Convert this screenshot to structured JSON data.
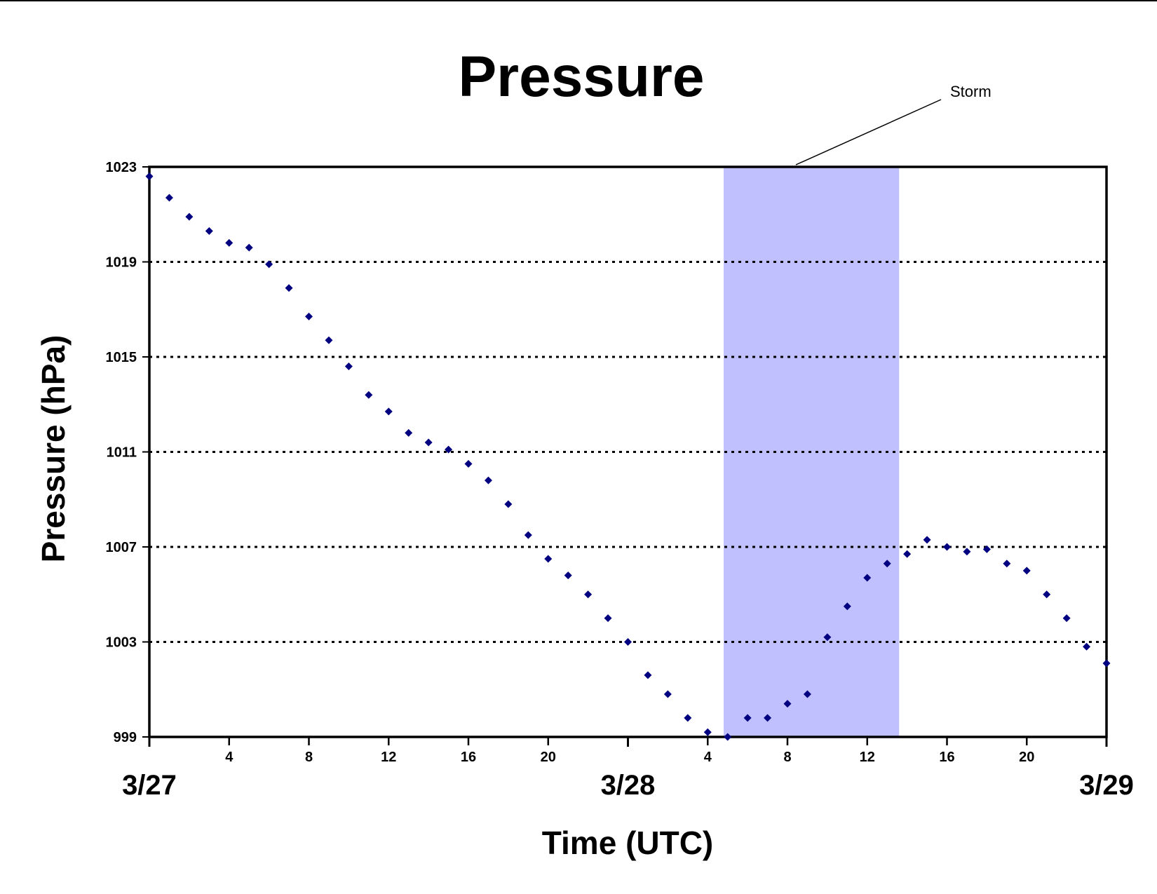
{
  "chart_data": {
    "type": "scatter",
    "title": "Pressure",
    "xlabel": "Time (UTC)",
    "ylabel": "Pressure (hPa)",
    "ylim": [
      999,
      1023
    ],
    "yticks": [
      999,
      1003,
      1007,
      1011,
      1015,
      1019,
      1023
    ],
    "xlim_hours": [
      0,
      48
    ],
    "xticks": [
      {
        "hour": 4,
        "label": "4"
      },
      {
        "hour": 8,
        "label": "8"
      },
      {
        "hour": 12,
        "label": "12"
      },
      {
        "hour": 16,
        "label": "16"
      },
      {
        "hour": 20,
        "label": "20"
      },
      {
        "hour": 28,
        "label": "4"
      },
      {
        "hour": 32,
        "label": "8"
      },
      {
        "hour": 36,
        "label": "12"
      },
      {
        "hour": 40,
        "label": "16"
      },
      {
        "hour": 44,
        "label": "20"
      }
    ],
    "date_labels": [
      {
        "hour": 0,
        "label": "3/27"
      },
      {
        "hour": 24,
        "label": "3/28"
      },
      {
        "hour": 48,
        "label": "3/29"
      }
    ],
    "grid": "horizontal dotted",
    "marker_color": "#000080",
    "shaded_region": {
      "start_hour": 28.8,
      "end_hour": 37.6,
      "color": "#c0c0ff",
      "label": "Storm"
    },
    "series": [
      {
        "x": [
          0,
          1,
          2,
          3,
          4,
          5,
          6,
          7,
          8,
          9,
          10,
          11,
          12,
          13,
          14,
          15,
          16,
          17,
          18,
          19,
          20,
          21,
          22,
          23,
          24,
          25,
          26,
          27,
          28,
          29,
          30,
          31,
          32,
          33,
          34,
          35,
          36,
          37,
          38,
          39,
          40,
          41,
          42,
          43,
          44,
          45,
          46,
          47,
          48
        ],
        "y": [
          1022.6,
          1021.7,
          1020.9,
          1020.3,
          1019.8,
          1019.6,
          1018.9,
          1017.9,
          1016.7,
          1015.7,
          1014.6,
          1013.4,
          1012.7,
          1011.8,
          1011.4,
          1011.1,
          1010.5,
          1009.8,
          1008.8,
          1007.5,
          1006.5,
          1005.8,
          1005.0,
          1004.0,
          1003.0,
          1001.6,
          1000.8,
          999.8,
          999.2,
          999.0,
          999.8,
          999.8,
          1000.4,
          1000.8,
          1003.2,
          1004.5,
          1005.7,
          1006.3,
          1006.7,
          1007.3,
          1007.0,
          1006.8,
          1006.9,
          1006.3,
          1006.0,
          1005.0,
          1004.0,
          1002.8,
          1002.1
        ]
      }
    ]
  }
}
